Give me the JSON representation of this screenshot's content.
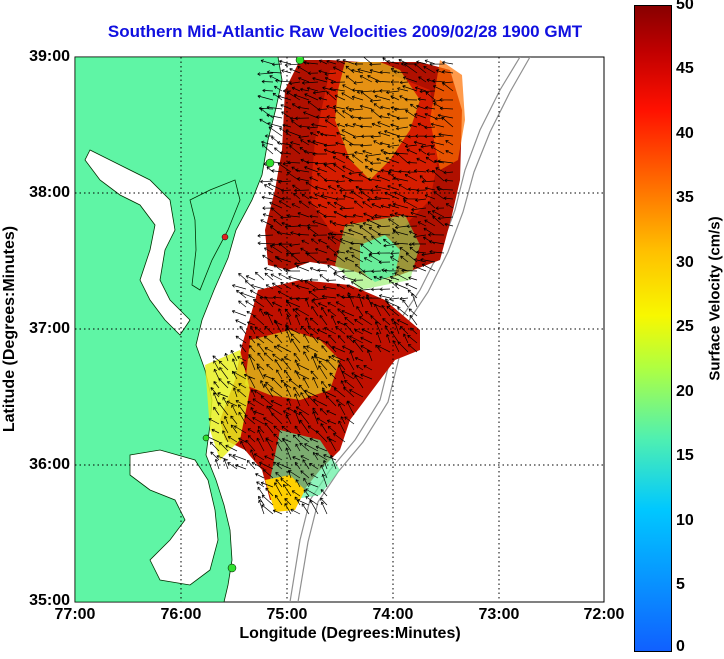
{
  "title": "Southern Mid-Atlantic Raw Velocities 2009/02/28 1900 GMT",
  "xaxis_title": "Longitude (Degrees:Minutes)",
  "yaxis_title": "Latitude (Degrees:Minutes)",
  "colorbar_title": "Surface Velocity (cm/s)",
  "x_ticks": [
    "77:00",
    "76:00",
    "75:00",
    "74:00",
    "73:00",
    "72:00"
  ],
  "y_ticks": [
    "39:00",
    "38:00",
    "37:00",
    "36:00",
    "35:00"
  ],
  "colorbar_ticks": [
    "50",
    "45",
    "40",
    "35",
    "30",
    "25",
    "20",
    "15",
    "10",
    "5",
    "0"
  ],
  "colors": {
    "land": "#5ff5a5",
    "title": "#1010e0",
    "grid": "#000000"
  }
}
